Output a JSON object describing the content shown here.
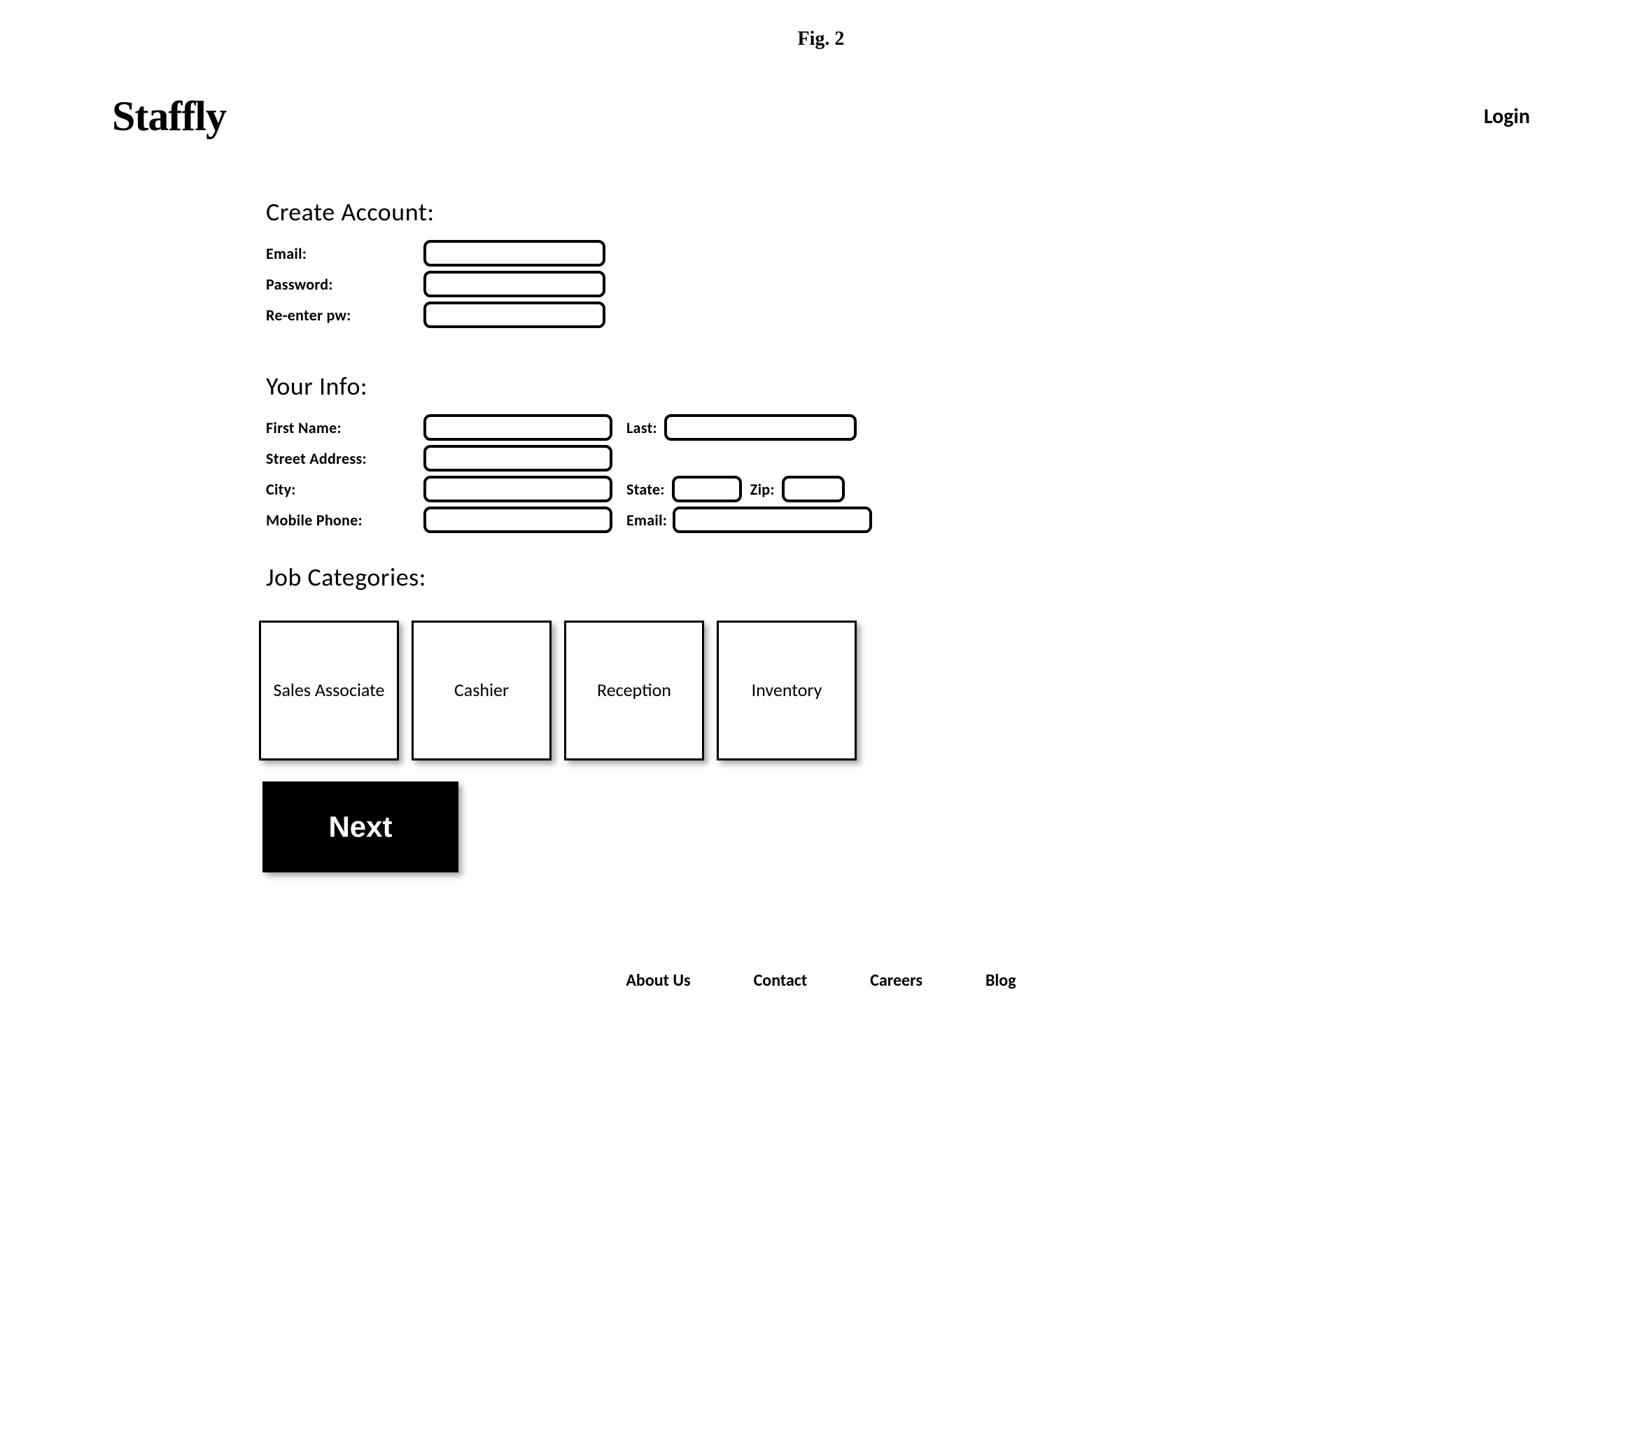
{
  "figure_label": "Fig. 2",
  "header": {
    "logo": "Staffly",
    "login": "Login"
  },
  "sections": {
    "create_account": {
      "heading": "Create Account:",
      "fields": {
        "email_label": "Email:",
        "password_label": "Password:",
        "reenter_label": "Re-enter pw:"
      }
    },
    "your_info": {
      "heading": "Your Info:",
      "fields": {
        "first_name_label": "First Name:",
        "last_label": "Last:",
        "street_label": "Street Address:",
        "city_label": "City:",
        "state_label": "State:",
        "zip_label": "Zip:",
        "mobile_label": "Mobile Phone:",
        "email_label": "Email:"
      }
    },
    "job_categories": {
      "heading": "Job Categories:",
      "items": [
        "Sales Associate",
        "Cashier",
        "Reception",
        "Inventory"
      ]
    }
  },
  "buttons": {
    "next": "Next"
  },
  "footer": {
    "links": [
      "About Us",
      "Contact",
      "Careers",
      "Blog"
    ]
  },
  "colors": {
    "background": "#ffffff",
    "text": "#000000",
    "button_bg": "#000000",
    "button_text": "#ffffff",
    "border": "#000000"
  }
}
